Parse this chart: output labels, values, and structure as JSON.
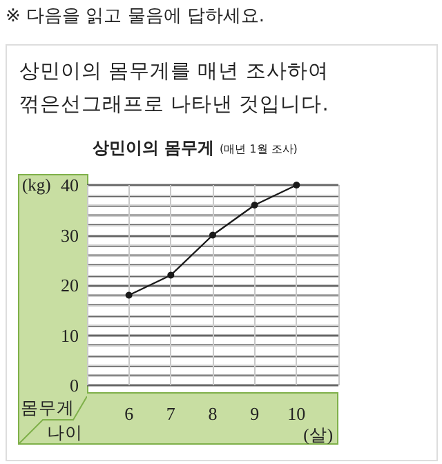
{
  "chart_data": {
    "type": "line",
    "title": "상민이의 몸무게",
    "subtitle": "(매년 1월 조사)",
    "xlabel": "나이",
    "ylabel": "몸무게",
    "annotations": [
      "※ 다음을 읽고 물음에 답하세요.",
      "상민이의 몸무게를 매년 조사하여",
      "꺾은선그래프로 나타낸 것입니다.",
      "(kg)",
      "(살)"
    ],
    "x": [
      6,
      7,
      8,
      9,
      10
    ],
    "xlim": [
      5,
      11
    ],
    "xticks": [
      6,
      7,
      8,
      9,
      10
    ],
    "series": [
      {
        "color": "#1a1a1a",
        "values": [
          18,
          22,
          30,
          36,
          40
        ]
      }
    ],
    "ylim": [
      0,
      40
    ],
    "yticks": [
      0,
      {
        "value": 2,
        "label": null
      },
      {
        "value": 4,
        "label": null
      },
      {
        "value": 6,
        "label": null
      },
      {
        "value": 8,
        "label": null
      },
      10,
      {
        "value": 12,
        "label": null
      },
      {
        "value": 14,
        "label": null
      },
      {
        "value": 16,
        "label": null
      },
      {
        "value": 18,
        "label": null
      },
      20,
      {
        "value": 22,
        "label": null
      },
      {
        "value": 24,
        "label": null
      },
      {
        "value": 26,
        "label": null
      },
      {
        "value": 28,
        "label": null
      },
      30,
      {
        "value": 32,
        "label": null
      },
      {
        "value": 34,
        "label": null
      },
      {
        "value": 36,
        "label": null
      },
      {
        "value": 38,
        "label": null
      },
      40
    ],
    "grid": true,
    "marker": "circle",
    "line_style": "solid"
  }
}
